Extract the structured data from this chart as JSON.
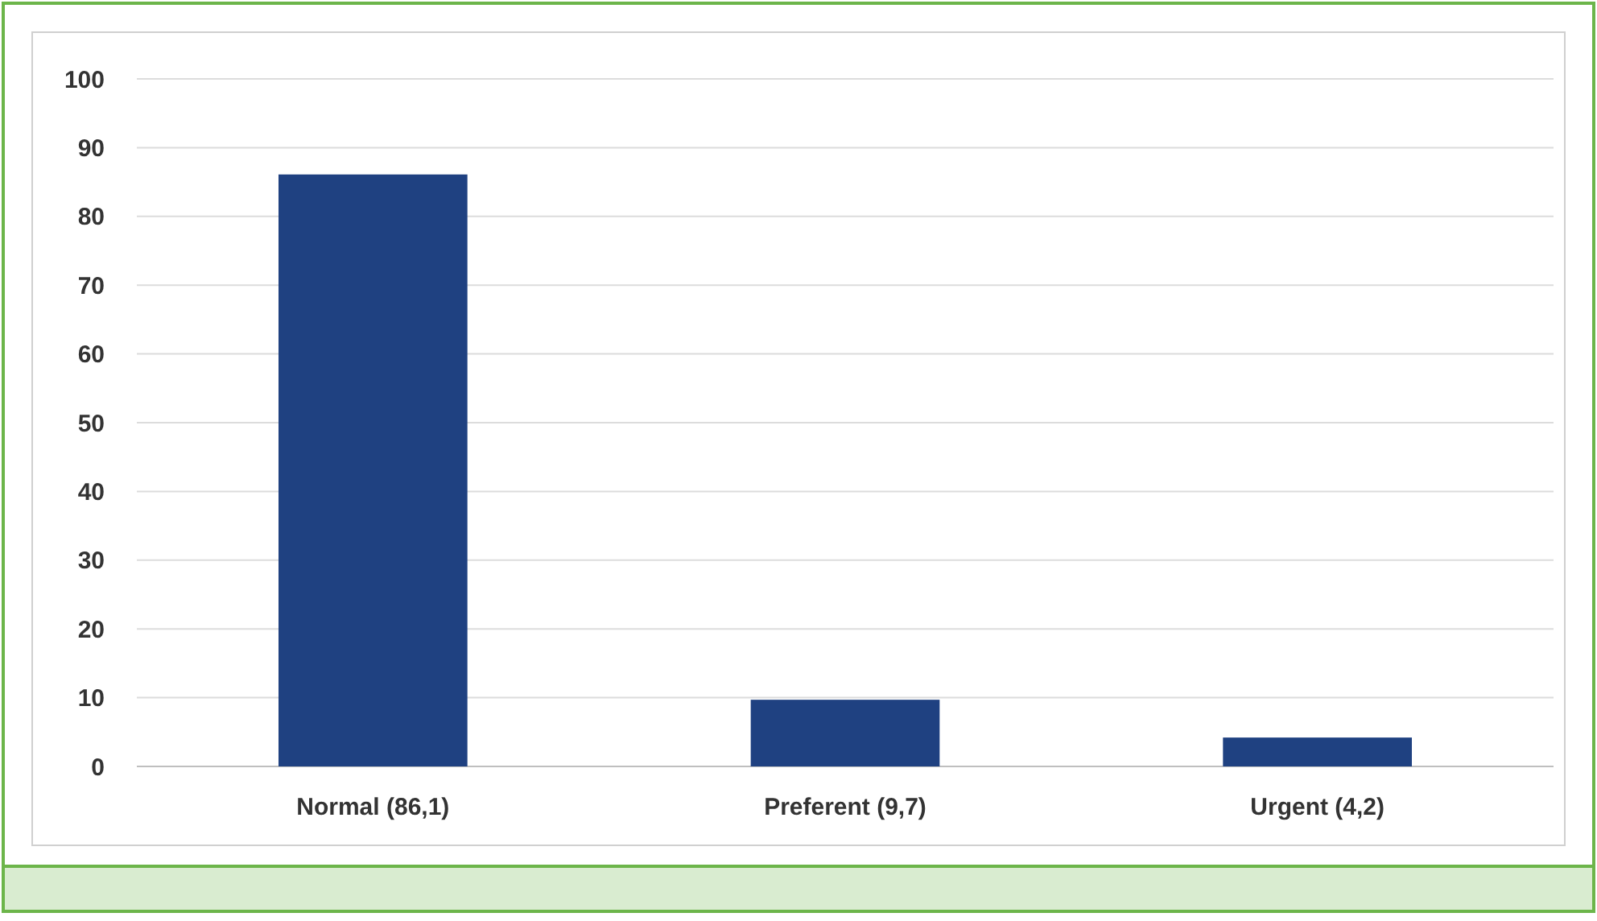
{
  "chart_data": {
    "type": "bar",
    "categories": [
      "Normal (86,1)",
      "Preferent (9,7)",
      "Urgent (4,2)"
    ],
    "values": [
      86.1,
      9.7,
      4.2
    ],
    "color": "#1f4181",
    "ylim": [
      0,
      100
    ],
    "yticks": [
      0,
      10,
      20,
      30,
      40,
      50,
      60,
      70,
      80,
      90,
      100
    ],
    "grid": "y"
  }
}
